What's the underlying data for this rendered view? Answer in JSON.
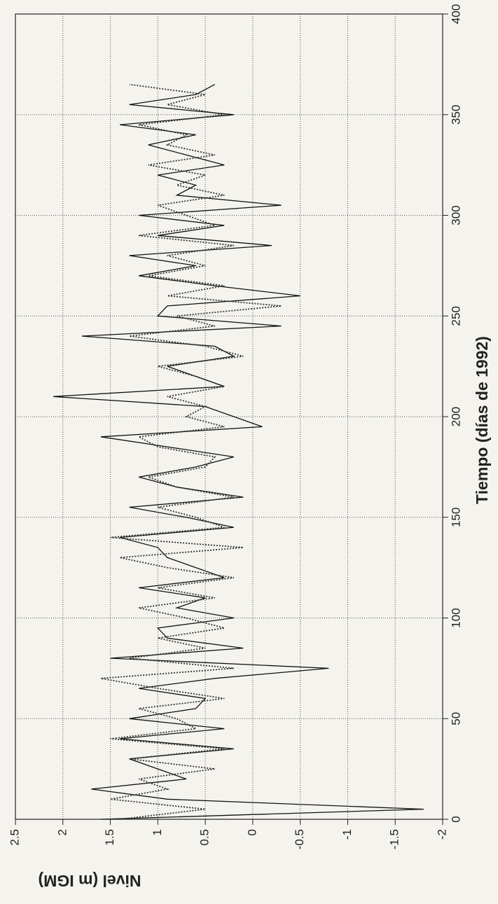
{
  "chart_data": {
    "type": "line",
    "x_label": "Tiempo (días de 1992)",
    "y_label": "Nivel (m IGM)",
    "x": [
      0,
      5,
      10,
      15,
      20,
      25,
      30,
      35,
      40,
      45,
      50,
      55,
      60,
      65,
      70,
      75,
      80,
      85,
      90,
      95,
      100,
      105,
      110,
      115,
      120,
      125,
      130,
      135,
      140,
      145,
      150,
      155,
      160,
      165,
      170,
      175,
      180,
      185,
      190,
      195,
      200,
      205,
      210,
      215,
      220,
      225,
      230,
      235,
      240,
      245,
      250,
      255,
      260,
      265,
      270,
      275,
      280,
      285,
      290,
      295,
      300,
      305,
      310,
      315,
      320,
      325,
      330,
      335,
      340,
      345,
      350,
      355,
      360,
      365
    ],
    "series": [
      {
        "color": "#111111",
        "style": "solid",
        "values": [
          1.6,
          -1.8,
          0.9,
          1.7,
          0.7,
          1.0,
          1.3,
          0.2,
          1.4,
          0.3,
          1.3,
          0.6,
          0.5,
          1.2,
          0.4,
          -0.8,
          1.5,
          0.1,
          0.9,
          1.0,
          0.2,
          0.8,
          0.5,
          1.2,
          0.3,
          0.6,
          0.9,
          1.0,
          1.4,
          0.2,
          0.7,
          1.3,
          0.1,
          0.8,
          1.2,
          0.6,
          0.2,
          0.9,
          1.6,
          -0.1,
          0.2,
          0.5,
          2.1,
          0.3,
          0.6,
          0.9,
          0.2,
          0.4,
          1.8,
          -0.3,
          1.0,
          0.9,
          -0.5,
          0.4,
          1.2,
          0.6,
          1.3,
          -0.2,
          1.0,
          0.3,
          1.2,
          -0.3,
          0.8,
          0.6,
          1.0,
          0.3,
          0.7,
          1.1,
          0.6,
          1.4,
          0.2,
          1.3,
          0.6,
          0.4
        ]
      },
      {
        "color": "#333333",
        "style": "dotted",
        "values": [
          1.4,
          0.5,
          1.5,
          0.9,
          1.2,
          0.4,
          1.3,
          0.3,
          1.5,
          0.6,
          0.8,
          1.2,
          0.3,
          1.0,
          1.6,
          0.2,
          1.3,
          0.5,
          1.0,
          0.3,
          0.7,
          1.2,
          0.4,
          1.0,
          0.2,
          0.9,
          1.4,
          0.1,
          1.5,
          0.3,
          0.6,
          1.0,
          0.2,
          0.8,
          1.1,
          0.5,
          0.4,
          1.0,
          1.2,
          0.3,
          0.7,
          0.5,
          0.9,
          0.3,
          0.6,
          1.0,
          0.1,
          0.5,
          1.3,
          0.4,
          0.8,
          -0.3,
          0.9,
          0.3,
          1.1,
          0.5,
          0.9,
          0.2,
          1.2,
          0.4,
          0.7,
          1.0,
          0.3,
          0.8,
          0.5,
          1.1,
          0.4,
          0.9,
          0.7,
          1.2,
          0.3,
          0.9,
          0.5,
          1.3
        ]
      }
    ],
    "xlim": [
      0,
      400
    ],
    "xticks": [
      0,
      50,
      100,
      150,
      200,
      250,
      300,
      350,
      400
    ],
    "ylim": [
      -2,
      2.5
    ],
    "yticks": [
      2.5,
      2,
      1.5,
      1,
      0.5,
      0,
      -0.5,
      -1,
      -1.5,
      -2
    ],
    "grid": true
  }
}
